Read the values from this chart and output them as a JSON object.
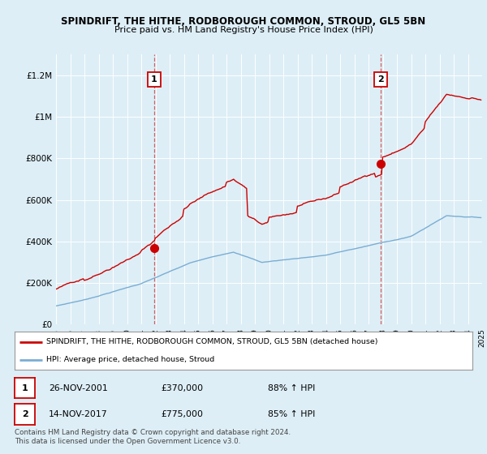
{
  "title": "SPINDRIFT, THE HITHE, RODBOROUGH COMMON, STROUD, GL5 5BN",
  "subtitle": "Price paid vs. HM Land Registry's House Price Index (HPI)",
  "outer_bg": "#ddeef6",
  "plot_bg": "#ddeef6",
  "red_color": "#cc0000",
  "blue_color": "#7aadd4",
  "ylim": [
    0,
    1300000
  ],
  "yticks": [
    0,
    200000,
    400000,
    600000,
    800000,
    1000000,
    1200000
  ],
  "ytick_labels": [
    "£0",
    "£200K",
    "£400K",
    "£600K",
    "£800K",
    "£1M",
    "£1.2M"
  ],
  "sale1_x": 2001.9,
  "sale1_y": 370000,
  "sale1_label": "1",
  "sale2_x": 2017.87,
  "sale2_y": 775000,
  "sale2_label": "2",
  "legend_line1": "SPINDRIFT, THE HITHE, RODBOROUGH COMMON, STROUD, GL5 5BN (detached house)",
  "legend_line2": "HPI: Average price, detached house, Stroud",
  "table_row1": [
    "1",
    "26-NOV-2001",
    "£370,000",
    "88% ↑ HPI"
  ],
  "table_row2": [
    "2",
    "14-NOV-2017",
    "£775,000",
    "85% ↑ HPI"
  ],
  "footer": "Contains HM Land Registry data © Crown copyright and database right 2024.\nThis data is licensed under the Open Government Licence v3.0.",
  "xmin": 1995,
  "xmax": 2025
}
